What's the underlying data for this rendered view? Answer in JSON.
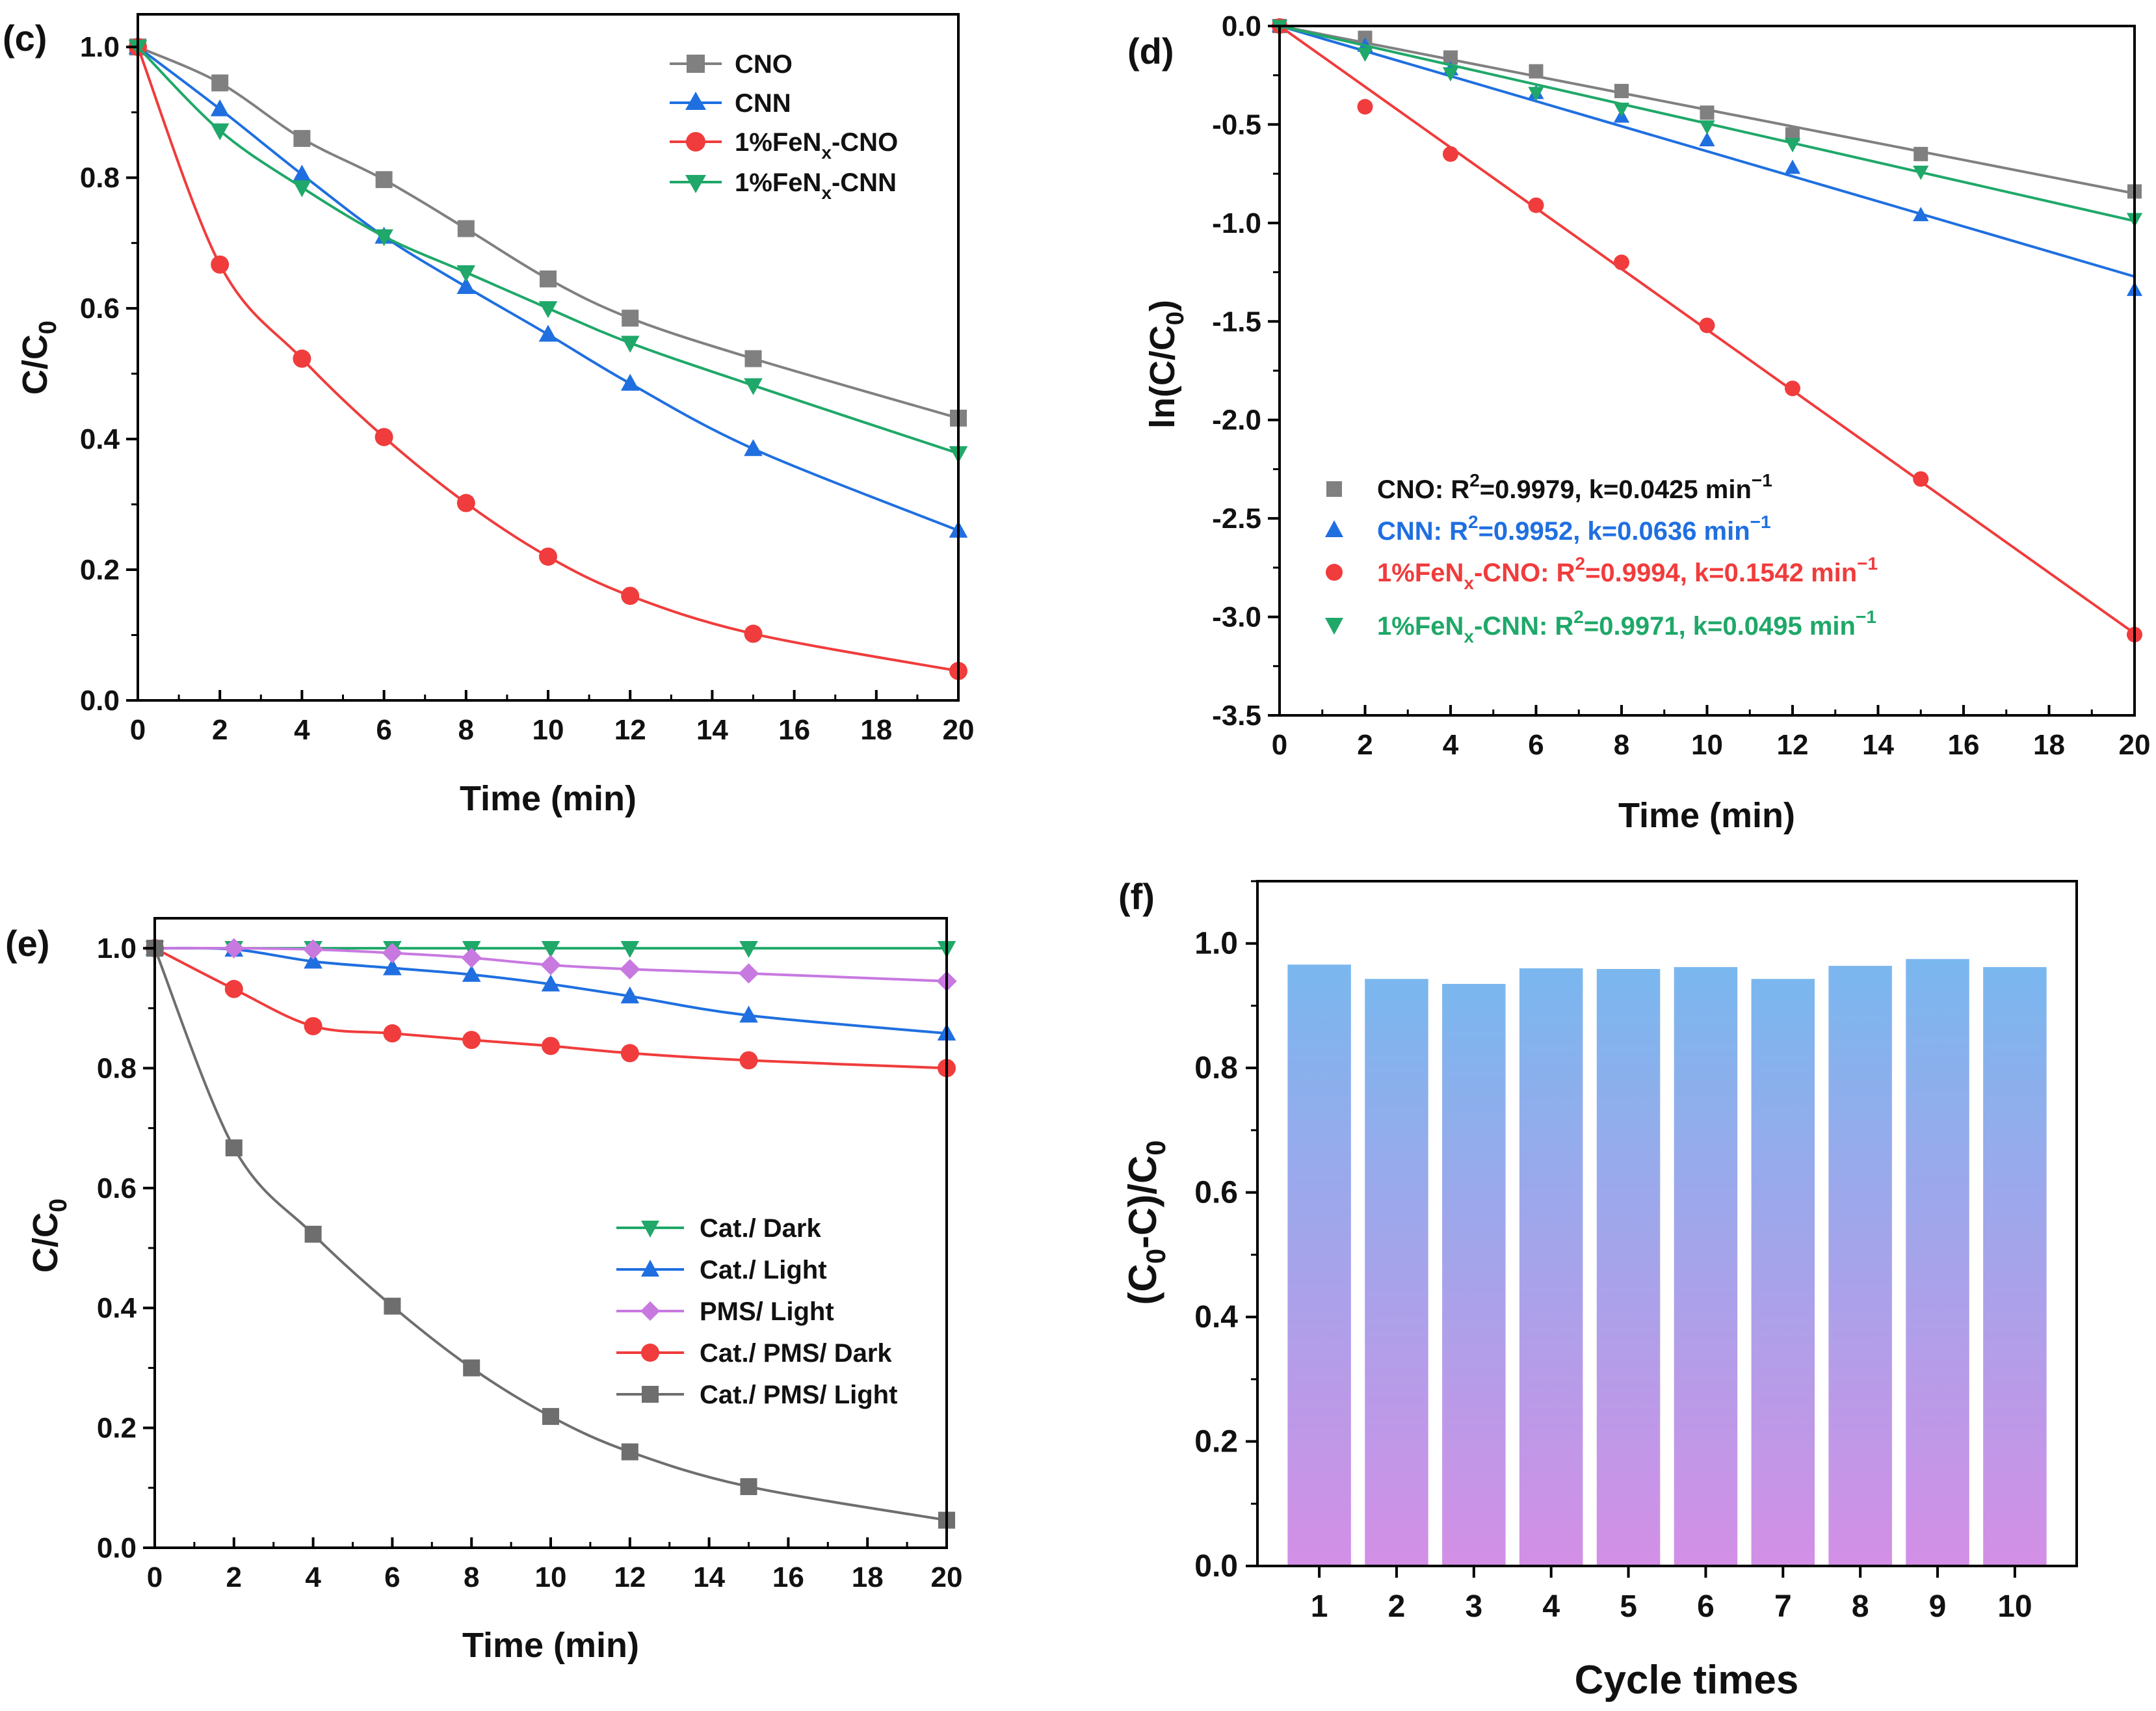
{
  "chart_data": [
    {
      "id": "c",
      "panel_label": "(c)",
      "type": "line",
      "xlabel": "Time (min)",
      "ylabel": {
        "main": "C/C",
        "sub": "0"
      },
      "xlim": [
        0,
        20
      ],
      "ylim": [
        0,
        1.05
      ],
      "xticks": [
        0,
        2,
        4,
        6,
        8,
        10,
        12,
        14,
        16,
        18,
        20
      ],
      "yticks": [
        0.0,
        0.2,
        0.4,
        0.6,
        0.8,
        1.0
      ],
      "ytick_labels": [
        "0.0",
        "0.2",
        "0.4",
        "0.6",
        "0.8",
        "1.0"
      ],
      "x": [
        0,
        2,
        4,
        6,
        8,
        10,
        12,
        15,
        20
      ],
      "legend_position": "top-right",
      "series": [
        {
          "name": "CNO",
          "marker": "square",
          "color": "#808080",
          "values": [
            1.0,
            0.945,
            0.86,
            0.797,
            0.722,
            0.645,
            0.585,
            0.523,
            0.432
          ]
        },
        {
          "name": "CNN",
          "marker": "triangle-up",
          "color": "#1f6fe0",
          "values": [
            1.0,
            0.905,
            0.805,
            0.71,
            0.633,
            0.56,
            0.485,
            0.385,
            0.26
          ]
        },
        {
          "name": "1%FeNx-CNO",
          "label_parts": [
            "1%FeN",
            "x",
            "-CNO"
          ],
          "marker": "circle",
          "color": "#f03c3c",
          "values": [
            1.0,
            0.667,
            0.523,
            0.403,
            0.302,
            0.22,
            0.16,
            0.102,
            0.045
          ]
        },
        {
          "name": "1%FeNx-CNN",
          "label_parts": [
            "1%FeN",
            "x",
            "-CNN"
          ],
          "marker": "triangle-down",
          "color": "#1fa869",
          "values": [
            1.0,
            0.872,
            0.785,
            0.71,
            0.655,
            0.6,
            0.547,
            0.482,
            0.378
          ]
        }
      ]
    },
    {
      "id": "d",
      "panel_label": "(d)",
      "type": "scatter",
      "xlabel": "Time (min)",
      "ylabel": {
        "main": "ln(C/C",
        "sub": "0",
        "end": ")"
      },
      "xlim": [
        0,
        20
      ],
      "ylim": [
        -3.5,
        0.0
      ],
      "xticks": [
        0,
        2,
        4,
        6,
        8,
        10,
        12,
        14,
        16,
        18,
        20
      ],
      "yticks": [
        0.0,
        -0.5,
        -1.0,
        -1.5,
        -2.0,
        -2.5,
        -3.0,
        -3.5
      ],
      "ytick_labels": [
        "0.0",
        "-0.5",
        "-1.0",
        "-1.5",
        "-2.0",
        "-2.5",
        "-3.0",
        "-3.5"
      ],
      "x": [
        0,
        2,
        4,
        6,
        8,
        10,
        12,
        15,
        20
      ],
      "legend_position": "bottom-left",
      "series": [
        {
          "name": "CNO",
          "marker": "square",
          "color": "#808080",
          "k": 0.0425,
          "r2": "0.9979",
          "legend_parts": [
            "CNO: R",
            "2",
            "=0.9979, k=0.0425 min",
            "−1"
          ],
          "values": [
            0.0,
            -0.06,
            -0.16,
            -0.23,
            -0.33,
            -0.44,
            -0.55,
            -0.65,
            -0.84
          ]
        },
        {
          "name": "CNN",
          "marker": "triangle-up",
          "color": "#1f6fe0",
          "k": 0.0636,
          "r2": "0.9952",
          "legend_parts": [
            "CNN: R",
            "2",
            "=0.9952, k=0.0636 min",
            "−1"
          ],
          "values": [
            0.0,
            -0.1,
            -0.22,
            -0.34,
            -0.46,
            -0.58,
            -0.72,
            -0.96,
            -1.34
          ]
        },
        {
          "name": "1%FeNx-CNO",
          "marker": "circle",
          "color": "#f03c3c",
          "k": 0.1542,
          "r2": "0.9994",
          "legend_parts": [
            "1%FeN",
            "x",
            "-CNO: R",
            "2",
            "=0.9994, k=0.1542 min",
            "−1"
          ],
          "values": [
            0.0,
            -0.41,
            -0.65,
            -0.91,
            -1.2,
            -1.52,
            -1.84,
            -2.3,
            -3.09
          ]
        },
        {
          "name": "1%FeNx-CNN",
          "marker": "triangle-down",
          "color": "#1fa869",
          "k": 0.0495,
          "r2": "0.9971",
          "legend_parts": [
            "1%FeN",
            "x",
            "-CNN: R",
            "2",
            "=0.9971, k=0.0495 min",
            "−1"
          ],
          "values": [
            0.0,
            -0.14,
            -0.24,
            -0.34,
            -0.42,
            -0.51,
            -0.6,
            -0.74,
            -0.98
          ]
        }
      ]
    },
    {
      "id": "e",
      "panel_label": "(e)",
      "type": "line",
      "xlabel": "Time (min)",
      "ylabel": {
        "main": "C/C",
        "sub": "0"
      },
      "xlim": [
        0,
        20
      ],
      "ylim": [
        0,
        1.05
      ],
      "xticks": [
        0,
        2,
        4,
        6,
        8,
        10,
        12,
        14,
        16,
        18,
        20
      ],
      "yticks": [
        0.0,
        0.2,
        0.4,
        0.6,
        0.8,
        1.0
      ],
      "ytick_labels": [
        "0.0",
        "0.2",
        "0.4",
        "0.6",
        "0.8",
        "1.0"
      ],
      "x": [
        0,
        2,
        4,
        6,
        8,
        10,
        12,
        15,
        20
      ],
      "legend_position": "center-right",
      "series": [
        {
          "name": "Cat./ Dark",
          "marker": "triangle-down",
          "color": "#1fa869",
          "values": [
            1.0,
            1.0,
            1.0,
            1.0,
            1.0,
            1.0,
            1.0,
            1.0,
            1.0
          ]
        },
        {
          "name": "Cat./ Light",
          "marker": "triangle-up",
          "color": "#1f6fe0",
          "values": [
            1.0,
            0.998,
            0.978,
            0.967,
            0.956,
            0.94,
            0.92,
            0.888,
            0.858
          ]
        },
        {
          "name": "PMS/ Light",
          "marker": "diamond",
          "color": "#c879e0",
          "values": [
            1.0,
            1.0,
            0.998,
            0.992,
            0.984,
            0.972,
            0.965,
            0.958,
            0.945
          ]
        },
        {
          "name": "Cat./ PMS/ Dark",
          "marker": "circle",
          "color": "#f03c3c",
          "values": [
            1.0,
            0.932,
            0.87,
            0.858,
            0.847,
            0.837,
            0.825,
            0.813,
            0.8
          ]
        },
        {
          "name": "Cat./ PMS/ Light",
          "marker": "square",
          "color": "#6e6e6e",
          "values": [
            1.0,
            0.667,
            0.523,
            0.403,
            0.3,
            0.219,
            0.16,
            0.102,
            0.046
          ]
        }
      ]
    },
    {
      "id": "f",
      "panel_label": "(f)",
      "type": "bar",
      "xlabel": "Cycle times",
      "ylabel": {
        "main": "(C",
        "sub": "0",
        "mid": "-C)/C",
        "sub2": "0"
      },
      "xlim": [
        0.2,
        10.8
      ],
      "ylim": [
        0,
        1.1
      ],
      "yticks": [
        0.0,
        0.2,
        0.4,
        0.6,
        0.8,
        1.0
      ],
      "ytick_labels": [
        "0.0",
        "0.2",
        "0.4",
        "0.6",
        "0.8",
        "1.0"
      ],
      "categories": [
        "1",
        "2",
        "3",
        "4",
        "5",
        "6",
        "7",
        "8",
        "9",
        "10"
      ],
      "values": [
        0.966,
        0.943,
        0.935,
        0.96,
        0.959,
        0.962,
        0.943,
        0.964,
        0.975,
        0.962
      ],
      "bar_gradient": {
        "top": "#7ab7ee",
        "bottom": "#d38fe6"
      }
    }
  ]
}
